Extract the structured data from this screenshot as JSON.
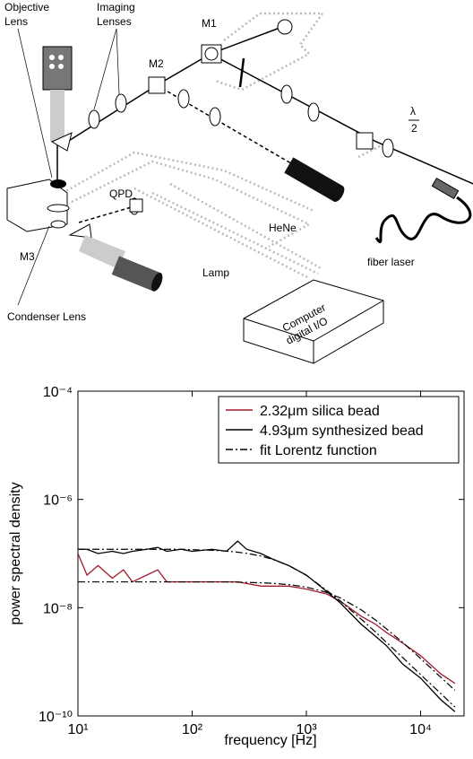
{
  "diagram": {
    "objective_lens": [
      "Objective",
      "Lens"
    ],
    "imaging_lenses": [
      "Imaging",
      "Lenses"
    ],
    "m1": "M1",
    "m2": "M2",
    "m3": "M3",
    "qpd": "QPD",
    "hene": "HeNe",
    "fiber_laser": "fiber laser",
    "lamp": "Lamp",
    "condenser_lens": "Condenser Lens",
    "computer": [
      "Computer",
      "digital I/O"
    ],
    "lambda": "λ",
    "half": "2"
  },
  "chart_data": {
    "type": "line",
    "xlabel": "frequency [Hz]",
    "ylabel": "power spectral density",
    "log_x": true,
    "log_y": true,
    "xlim": [
      10,
      24000
    ],
    "ylim": [
      1e-10,
      0.0001
    ],
    "xticks": [
      {
        "value": 10,
        "label": "10¹"
      },
      {
        "value": 100,
        "label": "10²"
      },
      {
        "value": 1000,
        "label": "10³"
      },
      {
        "value": 10000,
        "label": "10⁴"
      }
    ],
    "yticks": [
      {
        "value": 1e-10,
        "label": "10⁻¹⁰"
      },
      {
        "value": 1e-08,
        "label": "10⁻⁸"
      },
      {
        "value": 1e-06,
        "label": "10⁻⁶"
      },
      {
        "value": 0.0001,
        "label": "10⁻⁴"
      }
    ],
    "legend": "top-right",
    "x": [
      10,
      12,
      15,
      20,
      25,
      30,
      40,
      50,
      60,
      80,
      100,
      150,
      200,
      250,
      300,
      400,
      500,
      700,
      1000,
      1500,
      2000,
      3000,
      4000,
      5000,
      7000,
      10000,
      15000,
      20000
    ],
    "series": [
      {
        "name": "2.32μm silica bead",
        "color": "#a01c2c",
        "style": "solid",
        "values": [
          1e-07,
          4e-08,
          6e-08,
          3.5e-08,
          5e-08,
          3e-08,
          4e-08,
          5e-08,
          3e-08,
          3e-08,
          3e-08,
          3e-08,
          3e-08,
          3e-08,
          2.8e-08,
          2.5e-08,
          2.5e-08,
          2.5e-08,
          2.2e-08,
          1.8e-08,
          1.3e-08,
          7e-09,
          5e-09,
          3.5e-09,
          2.2e-09,
          1.3e-09,
          6e-10,
          4e-10
        ]
      },
      {
        "name": "4.93μm synthesized bead",
        "color": "#000000",
        "style": "solid",
        "values": [
          1.2e-07,
          1.2e-07,
          1e-07,
          1.1e-07,
          1e-07,
          1.1e-07,
          1.2e-07,
          1.3e-07,
          1.1e-07,
          1.2e-07,
          1.1e-07,
          1.2e-07,
          1.1e-07,
          1.7e-07,
          1.2e-07,
          1e-07,
          8e-08,
          6e-08,
          4e-08,
          2e-08,
          1.2e-08,
          5e-09,
          3e-09,
          2e-09,
          9e-10,
          5e-10,
          2e-10,
          1.2e-10
        ]
      },
      {
        "name": "fit Lorentz function",
        "color": "#000000",
        "style": "dashdot",
        "values": [
          1.2e-07,
          1.2e-07,
          1.2e-07,
          1.2e-07,
          1.2e-07,
          1.2e-07,
          1.2e-07,
          1.2e-07,
          1.2e-07,
          1.2e-07,
          1.18e-07,
          1.15e-07,
          1.11e-07,
          1.06e-07,
          1.01e-07,
          9e-08,
          7.9e-08,
          6e-08,
          3.95e-08,
          2.1e-08,
          1.31e-08,
          6.2e-09,
          3.6e-09,
          2.3e-09,
          1.19e-09,
          5.8e-10,
          2.6e-10,
          1.46e-10
        ]
      },
      {
        "color": "#000000",
        "style": "dashdot",
        "values": [
          3e-08,
          3e-08,
          3e-08,
          3e-08,
          3e-08,
          3e-08,
          3e-08,
          3e-08,
          3e-08,
          3e-08,
          3e-08,
          3e-08,
          3e-08,
          2.96e-08,
          2.93e-08,
          2.88e-08,
          2.82e-08,
          2.67e-08,
          2.4e-08,
          1.92e-08,
          1.5e-08,
          9.2e-09,
          6e-09,
          4.1e-09,
          2.26e-09,
          1.15e-09,
          5.2e-10,
          2.97e-10
        ]
      }
    ]
  }
}
